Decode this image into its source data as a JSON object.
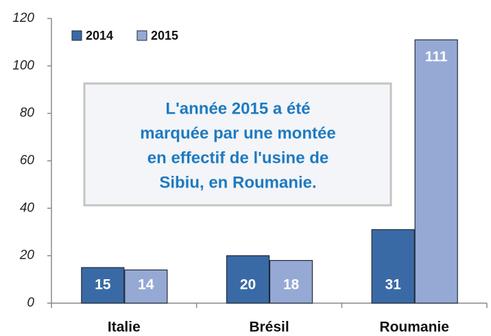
{
  "chart_data": {
    "type": "bar",
    "categories": [
      "Italie",
      "Brésil",
      "Roumanie"
    ],
    "series": [
      {
        "name": "2014",
        "color": "#3a6aa5",
        "values": [
          15,
          20,
          31
        ]
      },
      {
        "name": "2015",
        "color": "#96a9d4",
        "values": [
          14,
          18,
          111
        ]
      }
    ],
    "ylim": [
      0,
      120
    ],
    "yticks": [
      0,
      20,
      40,
      60,
      80,
      100,
      120
    ],
    "grid": false,
    "legend": "top-left",
    "annotation": [
      "L'année 2015 a été",
      "marquée par une montée",
      "en effectif de l'usine de",
      "Sibiu, en Roumanie."
    ]
  }
}
